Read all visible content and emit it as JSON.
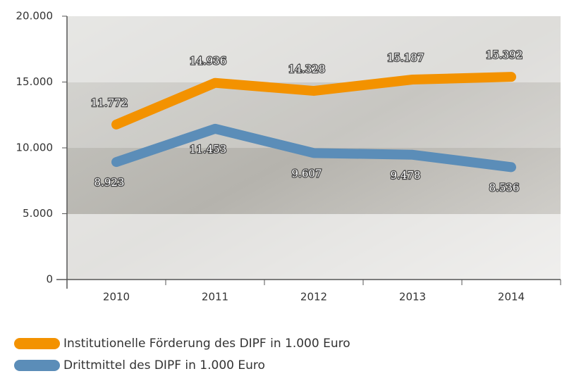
{
  "chart_data": {
    "type": "line",
    "categories": [
      "2010",
      "2011",
      "2012",
      "2013",
      "2014"
    ],
    "series": [
      {
        "name": "Institutionelle Förderung des DIPF in 1.000 Euro",
        "color": "#f39200",
        "values": [
          11772,
          14936,
          14328,
          15187,
          15392
        ],
        "value_labels": [
          "11.772",
          "14.936",
          "14.328",
          "15.187",
          "15.392"
        ]
      },
      {
        "name": "Drittmittel des DIPF in 1.000 Euro",
        "color": "#5b8db8",
        "values": [
          8923,
          11453,
          9607,
          9478,
          8536
        ],
        "value_labels": [
          "8.923",
          "11.453",
          "9.607",
          "9.478",
          "8.536"
        ]
      }
    ],
    "ylim": [
      0,
      20000
    ],
    "yticks": [
      0,
      {
        "value": 5000,
        "label": "5.000"
      },
      {
        "value": 10000,
        "label": "10.000"
      },
      {
        "value": 15000,
        "label": "15.000"
      },
      {
        "value": 20000,
        "label": "20.000"
      }
    ]
  }
}
